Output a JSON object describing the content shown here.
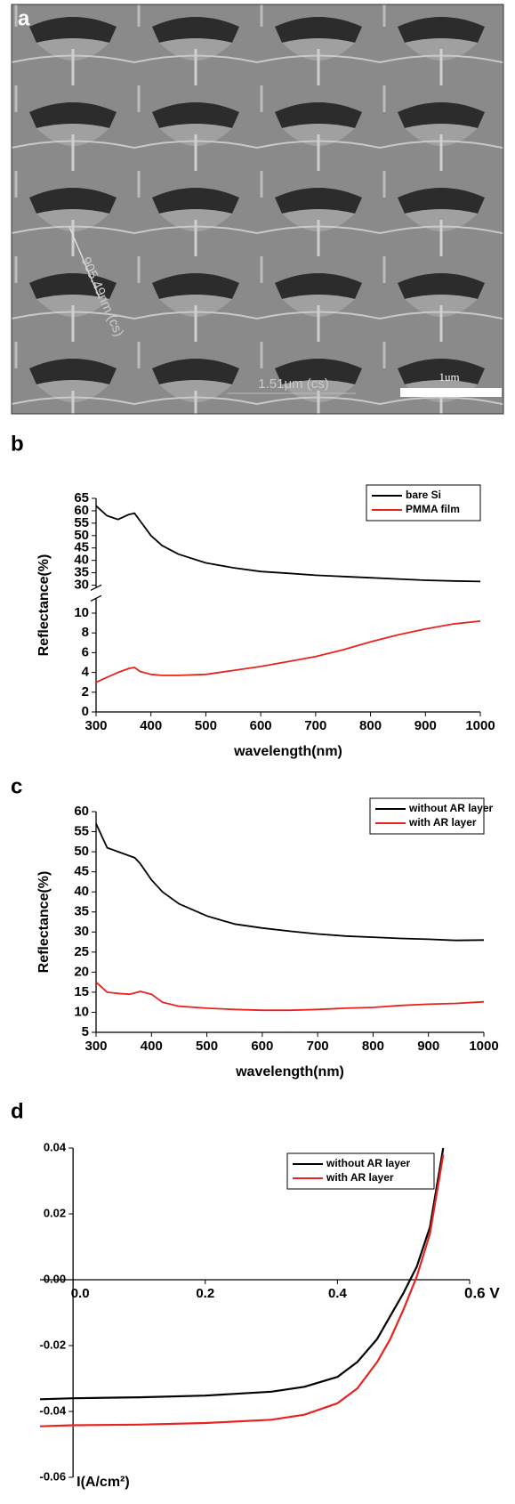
{
  "image": {
    "panel": "a",
    "scale_bar": "1um",
    "annotations": [
      "905.49nm (cs)",
      "1.51μm (cs)"
    ]
  },
  "chart_data": [
    {
      "type": "line",
      "panel": "b",
      "xlabel": "wavelength(nm)",
      "ylabel": "Reflectance(%)",
      "x": [
        300,
        320,
        340,
        360,
        370,
        380,
        400,
        420,
        450,
        500,
        550,
        600,
        650,
        700,
        750,
        800,
        850,
        900,
        950,
        1000
      ],
      "series": [
        {
          "name": "bare Si",
          "color": "#000000",
          "values": [
            62,
            58,
            56.5,
            58.5,
            59,
            56,
            50,
            46,
            42.5,
            39,
            37,
            35.5,
            34.8,
            34,
            33.5,
            33,
            32.5,
            32,
            31.7,
            31.5
          ]
        },
        {
          "name": "PMMA film",
          "color": "#e8231f",
          "values": [
            3,
            3.5,
            4,
            4.4,
            4.5,
            4.1,
            3.8,
            3.7,
            3.7,
            3.8,
            4.2,
            4.6,
            5.1,
            5.6,
            6.3,
            7.1,
            7.8,
            8.4,
            8.9,
            9.2
          ]
        }
      ],
      "xlim": [
        300,
        1000
      ],
      "xticks": [
        300,
        400,
        500,
        600,
        700,
        800,
        900,
        1000
      ],
      "ylim": [
        0,
        65
      ],
      "ybreak": [
        11.5,
        29
      ],
      "yticks": [
        0,
        2,
        4,
        6,
        8,
        10,
        30,
        35,
        40,
        45,
        50,
        55,
        60,
        65
      ],
      "legend": "upper right"
    },
    {
      "type": "line",
      "panel": "c",
      "xlabel": "wavelength(nm)",
      "ylabel": "Reflectance(%)",
      "x": [
        300,
        320,
        340,
        360,
        370,
        380,
        400,
        420,
        450,
        500,
        550,
        600,
        650,
        700,
        750,
        800,
        850,
        900,
        950,
        1000
      ],
      "series": [
        {
          "name": "without AR layer",
          "color": "#000000",
          "values": [
            57,
            51,
            50,
            49,
            48.5,
            47,
            43,
            40,
            37,
            34,
            32,
            31,
            30.2,
            29.5,
            29,
            28.7,
            28.4,
            28.2,
            27.9,
            28
          ]
        },
        {
          "name": "with AR layer",
          "color": "#e8231f",
          "values": [
            17.5,
            15,
            14.7,
            14.5,
            14.8,
            15.2,
            14.5,
            12.5,
            11.5,
            11,
            10.7,
            10.5,
            10.5,
            10.7,
            11,
            11.2,
            11.7,
            12,
            12.2,
            12.6
          ]
        }
      ],
      "xlim": [
        300,
        1000
      ],
      "xticks": [
        300,
        400,
        500,
        600,
        700,
        800,
        900,
        1000
      ],
      "ylim": [
        5,
        60
      ],
      "yticks": [
        5,
        10,
        15,
        20,
        25,
        30,
        35,
        40,
        45,
        50,
        55,
        60
      ],
      "legend": "upper right"
    },
    {
      "type": "line",
      "panel": "d",
      "ylabel": "I(A/cm²)",
      "axes_cross_at_zero": true,
      "x": [
        -0.05,
        0,
        0.1,
        0.2,
        0.3,
        0.35,
        0.4,
        0.43,
        0.46,
        0.48,
        0.5,
        0.52,
        0.54,
        0.56
      ],
      "series": [
        {
          "name": "without AR layer",
          "color": "#000000",
          "values": [
            -0.0363,
            -0.036,
            -0.0357,
            -0.0352,
            -0.034,
            -0.0325,
            -0.0295,
            -0.025,
            -0.018,
            -0.011,
            -0.004,
            0.004,
            0.016,
            0.04
          ]
        },
        {
          "name": "with AR layer",
          "color": "#e8231f",
          "values": [
            -0.0445,
            -0.0442,
            -0.044,
            -0.0435,
            -0.0425,
            -0.041,
            -0.0375,
            -0.033,
            -0.025,
            -0.018,
            -0.009,
            0.001,
            0.014,
            0.038
          ]
        }
      ],
      "xlim": [
        -0.05,
        0.6
      ],
      "xticks": [
        {
          "value": 0,
          "label": "0.0"
        },
        0.2,
        0.4,
        {
          "value": 0.6,
          "label": "0.6 V"
        }
      ],
      "ylim": [
        -0.06,
        0.04
      ],
      "yticks": [
        -0.06,
        -0.04,
        -0.02,
        {
          "value": 0,
          "label": "0.00"
        },
        0.02,
        0.04
      ],
      "legend": "upper right"
    }
  ]
}
